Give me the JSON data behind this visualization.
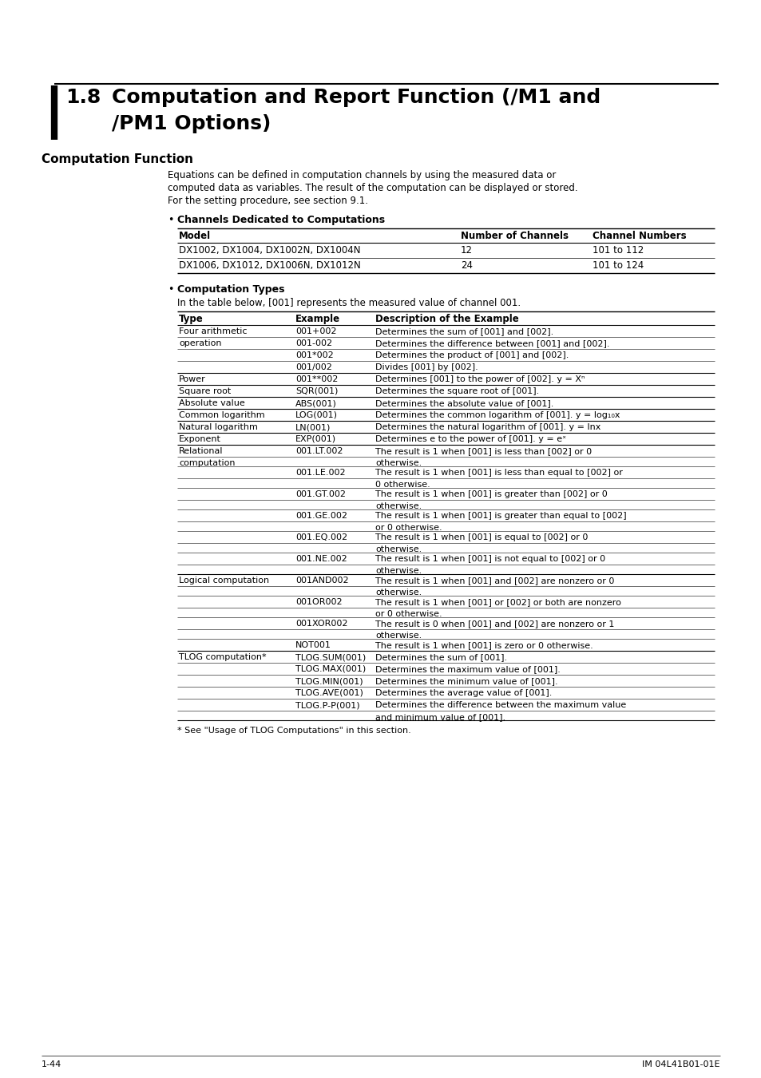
{
  "title_line1": "1.8    Computation and Report Function (/M1 and",
  "title_line2": "        /PM1 Options)",
  "section_heading": "Computation Function",
  "intro_text": [
    "Equations can be defined in computation channels by using the measured data or",
    "computed data as variables. The result of the computation can be displayed or stored.",
    "For the setting procedure, see section 9.1."
  ],
  "bullet1_title": "Channels Dedicated to Computations",
  "channels_table_headers": [
    "Model",
    "Number of Channels",
    "Channel Numbers"
  ],
  "channels_table_rows": [
    [
      "DX1002, DX1004, DX1002N, DX1004N",
      "12",
      "101 to 112"
    ],
    [
      "DX1006, DX1012, DX1006N, DX1012N",
      "24",
      "101 to 124"
    ]
  ],
  "bullet2_title": "Computation Types",
  "comp_types_intro": "In the table below, [001] represents the measured value of channel 001.",
  "comp_table_headers": [
    "Type",
    "Example",
    "Description of the Example"
  ],
  "footnote": "* See \"Usage of TLOG Computations\" in this section.",
  "page_left": "1-44",
  "page_right": "IM 04L41B01-01E",
  "bg_color": "#ffffff",
  "text_color": "#000000"
}
